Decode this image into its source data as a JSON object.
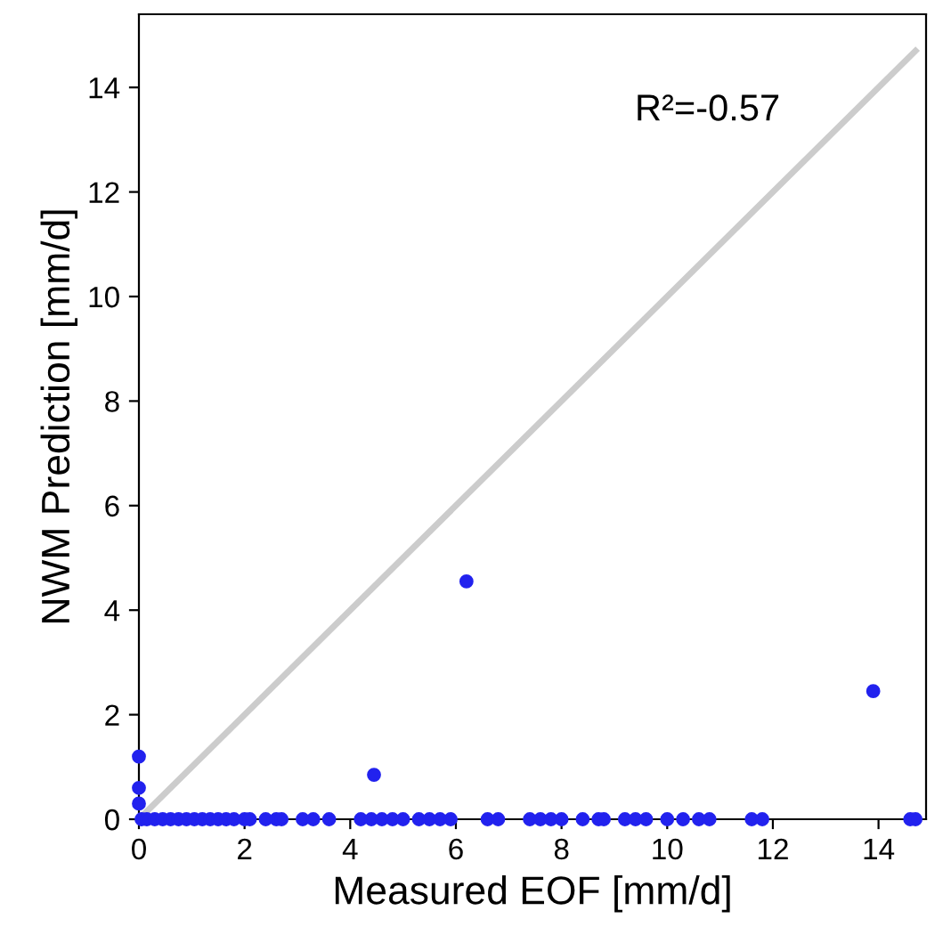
{
  "chart_data": {
    "type": "scatter",
    "xlabel": "Measured EOF [mm/d]",
    "ylabel": "NWM Prediction [mm/d]",
    "annotations": [
      "R²=-0.57"
    ],
    "xlim": [
      0,
      14.9
    ],
    "ylim": [
      0,
      15.4
    ],
    "xticks": [
      0,
      2,
      4,
      6,
      8,
      10,
      12,
      14
    ],
    "yticks": [
      0,
      2,
      4,
      6,
      8,
      10,
      12,
      14
    ],
    "grid": false,
    "series": [
      {
        "type": "line",
        "marker": "none",
        "color": "#cccccc",
        "x": [
          0,
          14.7
        ],
        "values": [
          0,
          14.7
        ]
      },
      {
        "marker": "circle",
        "color": "#2222ee",
        "x": [
          0,
          0,
          0,
          4.45,
          6.2,
          13.9,
          0.05,
          0.15,
          0.3,
          0.45,
          0.6,
          0.75,
          0.9,
          1.05,
          1.2,
          1.35,
          1.5,
          1.65,
          1.8,
          2.0,
          2.1,
          2.4,
          2.6,
          2.7,
          3.1,
          3.3,
          3.6,
          4.2,
          4.4,
          4.6,
          4.8,
          5.0,
          5.3,
          5.5,
          5.7,
          5.9,
          6.6,
          6.8,
          7.4,
          7.6,
          7.8,
          8.0,
          8.4,
          8.7,
          8.8,
          9.2,
          9.4,
          9.6,
          10.0,
          10.3,
          10.6,
          10.8,
          11.6,
          11.8,
          14.6,
          14.7
        ],
        "values": [
          1.2,
          0.6,
          0.3,
          0.85,
          4.55,
          2.45,
          0,
          0,
          0,
          0,
          0,
          0,
          0,
          0,
          0,
          0,
          0,
          0,
          0,
          0,
          0,
          0,
          0,
          0,
          0,
          0,
          0,
          0,
          0,
          0,
          0,
          0,
          0,
          0,
          0,
          0,
          0,
          0,
          0,
          0,
          0,
          0,
          0,
          0,
          0,
          0,
          0,
          0,
          0,
          0,
          0,
          0,
          0,
          0,
          0,
          0
        ]
      }
    ]
  }
}
